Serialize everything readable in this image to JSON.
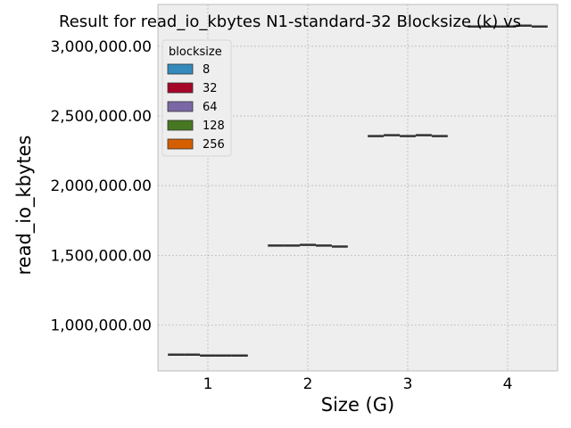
{
  "chart_data": {
    "type": "box",
    "title": "Result for read_io_kbytes N1-standard-32 Blocksize (k) vs",
    "xlabel": "Size (G)",
    "ylabel": "read_io_kbytes",
    "categories": [
      "1",
      "2",
      "3",
      "4"
    ],
    "ylim": [
      670000,
      3300000
    ],
    "yticks": [
      1000000,
      1500000,
      2000000,
      2500000,
      3000000
    ],
    "ytick_labels": [
      "1,000,000.00",
      "1,500,000.00",
      "2,000,000.00",
      "2,500,000.00",
      "3,000,000.00"
    ],
    "grid": true,
    "legend": {
      "title": "blocksize",
      "placement": "top-left"
    },
    "series": [
      {
        "name": "8",
        "color": "#348ABD",
        "values": [
          787000,
          1570000,
          2355000,
          3142000
        ]
      },
      {
        "name": "32",
        "color": "#A60628",
        "values": [
          787000,
          1570000,
          2362000,
          3142000
        ]
      },
      {
        "name": "64",
        "color": "#7A68A6",
        "values": [
          780000,
          1575000,
          2355000,
          3142000
        ]
      },
      {
        "name": "128",
        "color": "#467821",
        "values": [
          780000,
          1570000,
          2362000,
          3148000
        ]
      },
      {
        "name": "256",
        "color": "#D55E00",
        "values": [
          780000,
          1563000,
          2355000,
          3142000
        ]
      }
    ]
  }
}
